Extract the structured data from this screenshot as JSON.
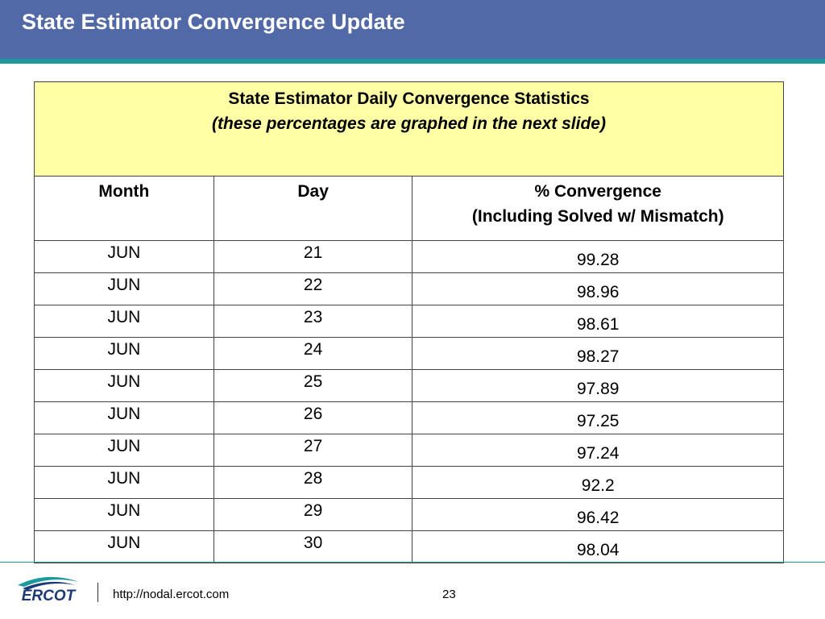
{
  "header": {
    "title": "State Estimator Convergence Update"
  },
  "table": {
    "caption": {
      "title": "State Estimator Daily Convergence Statistics",
      "subtitle": "(these percentages are graphed in the next slide)"
    },
    "columns": [
      "Month",
      "Day",
      [
        "% Convergence",
        "(Including Solved w/ Mismatch)"
      ]
    ],
    "rows": [
      [
        "JUN",
        21,
        99.28
      ],
      [
        "JUN",
        22,
        98.96
      ],
      [
        "JUN",
        23,
        98.61
      ],
      [
        "JUN",
        24,
        98.27
      ],
      [
        "JUN",
        25,
        97.89
      ],
      [
        "JUN",
        26,
        97.25
      ],
      [
        "JUN",
        27,
        97.24
      ],
      [
        "JUN",
        28,
        92.2
      ],
      [
        "JUN",
        29,
        96.42
      ],
      [
        "JUN",
        30,
        98.04
      ]
    ]
  },
  "footer": {
    "logo": "ERCOT",
    "url": "http://nodal.ercot.com",
    "page": 23
  }
}
